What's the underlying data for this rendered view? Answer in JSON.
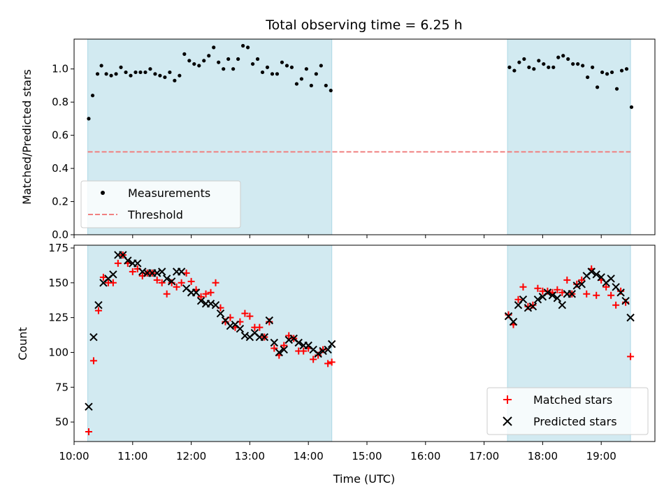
{
  "chart_data": [
    {
      "type": "scatter",
      "title": "Total observing time = 6.25 h",
      "xlabel": "",
      "ylabel": "Matched/Predicted stars",
      "xlim": [
        "10:00",
        "19:55"
      ],
      "ylim": [
        0,
        1.18
      ],
      "yticks": [
        "0.0",
        "0.2",
        "0.4",
        "0.6",
        "0.8",
        "1.0"
      ],
      "shaded_intervals": [
        [
          "10:14",
          "14:24"
        ],
        [
          "17:24",
          "19:30"
        ]
      ],
      "shade_color": "#add8e6",
      "grid": false,
      "legend": "lower-left",
      "series": [
        {
          "name": "Measurements",
          "marker": "dot",
          "color": "#000000",
          "points": [
            [
              "10:15",
              0.7
            ],
            [
              "10:19",
              0.84
            ],
            [
              "10:24",
              0.97
            ],
            [
              "10:28",
              1.02
            ],
            [
              "10:33",
              0.97
            ],
            [
              "10:38",
              0.96
            ],
            [
              "10:43",
              0.97
            ],
            [
              "10:48",
              1.01
            ],
            [
              "10:53",
              0.98
            ],
            [
              "10:58",
              0.96
            ],
            [
              "11:03",
              0.98
            ],
            [
              "11:08",
              0.98
            ],
            [
              "11:13",
              0.98
            ],
            [
              "11:18",
              1.0
            ],
            [
              "11:23",
              0.97
            ],
            [
              "11:28",
              0.96
            ],
            [
              "11:33",
              0.95
            ],
            [
              "11:38",
              0.98
            ],
            [
              "11:43",
              0.93
            ],
            [
              "11:48",
              0.96
            ],
            [
              "11:53",
              1.09
            ],
            [
              "11:58",
              1.05
            ],
            [
              "12:03",
              1.03
            ],
            [
              "12:08",
              1.02
            ],
            [
              "12:13",
              1.05
            ],
            [
              "12:18",
              1.08
            ],
            [
              "12:23",
              1.13
            ],
            [
              "12:28",
              1.04
            ],
            [
              "12:33",
              1.0
            ],
            [
              "12:38",
              1.06
            ],
            [
              "12:43",
              1.0
            ],
            [
              "12:48",
              1.06
            ],
            [
              "12:53",
              1.14
            ],
            [
              "12:58",
              1.13
            ],
            [
              "13:03",
              1.03
            ],
            [
              "13:08",
              1.06
            ],
            [
              "13:13",
              0.98
            ],
            [
              "13:18",
              1.01
            ],
            [
              "13:23",
              0.97
            ],
            [
              "13:28",
              0.97
            ],
            [
              "13:33",
              1.04
            ],
            [
              "13:38",
              1.02
            ],
            [
              "13:43",
              1.01
            ],
            [
              "13:48",
              0.91
            ],
            [
              "13:53",
              0.94
            ],
            [
              "13:58",
              1.0
            ],
            [
              "14:03",
              0.9
            ],
            [
              "14:08",
              0.97
            ],
            [
              "14:13",
              1.02
            ],
            [
              "14:18",
              0.9
            ],
            [
              "14:23",
              0.87
            ],
            [
              "17:26",
              1.01
            ],
            [
              "17:31",
              0.99
            ],
            [
              "17:36",
              1.04
            ],
            [
              "17:41",
              1.06
            ],
            [
              "17:46",
              1.01
            ],
            [
              "17:51",
              1.0
            ],
            [
              "17:56",
              1.05
            ],
            [
              "18:01",
              1.03
            ],
            [
              "18:06",
              1.01
            ],
            [
              "18:11",
              1.01
            ],
            [
              "18:16",
              1.07
            ],
            [
              "18:21",
              1.08
            ],
            [
              "18:26",
              1.06
            ],
            [
              "18:31",
              1.03
            ],
            [
              "18:36",
              1.03
            ],
            [
              "18:41",
              1.02
            ],
            [
              "18:46",
              0.95
            ],
            [
              "18:51",
              1.01
            ],
            [
              "18:56",
              0.89
            ],
            [
              "19:01",
              0.98
            ],
            [
              "19:06",
              0.97
            ],
            [
              "19:11",
              0.98
            ],
            [
              "19:16",
              0.88
            ],
            [
              "19:21",
              0.99
            ],
            [
              "19:26",
              1.0
            ],
            [
              "19:31",
              0.77
            ]
          ]
        },
        {
          "name": "Threshold",
          "marker": "dashed-line",
          "color": "#f08080",
          "value": 0.5
        }
      ]
    },
    {
      "type": "scatter",
      "title": "",
      "xlabel": "Time (UTC)",
      "ylabel": "Count",
      "xlim": [
        "10:00",
        "19:55"
      ],
      "ylim": [
        36,
        177
      ],
      "yticks": [
        "50",
        "75",
        "100",
        "125",
        "150",
        "175"
      ],
      "xticks": [
        "10:00",
        "11:00",
        "12:00",
        "13:00",
        "14:00",
        "15:00",
        "16:00",
        "17:00",
        "18:00",
        "19:00"
      ],
      "shaded_intervals": [
        [
          "10:14",
          "14:24"
        ],
        [
          "17:24",
          "19:30"
        ]
      ],
      "shade_color": "#add8e6",
      "grid": false,
      "legend": "lower-right",
      "series": [
        {
          "name": "Matched stars",
          "marker": "plus",
          "color": "#ff0000",
          "points": [
            [
              "10:15",
              43
            ],
            [
              "10:20",
              94
            ],
            [
              "10:25",
              130
            ],
            [
              "10:30",
              154
            ],
            [
              "10:35",
              150
            ],
            [
              "10:40",
              150
            ],
            [
              "10:45",
              164
            ],
            [
              "10:50",
              170
            ],
            [
              "10:55",
              164
            ],
            [
              "11:00",
              158
            ],
            [
              "11:05",
              160
            ],
            [
              "11:10",
              155
            ],
            [
              "11:15",
              157
            ],
            [
              "11:20",
              157
            ],
            [
              "11:25",
              152
            ],
            [
              "11:30",
              150
            ],
            [
              "11:35",
              142
            ],
            [
              "11:40",
              150
            ],
            [
              "11:45",
              147
            ],
            [
              "11:50",
              150
            ],
            [
              "11:55",
              157
            ],
            [
              "12:00",
              151
            ],
            [
              "12:05",
              145
            ],
            [
              "12:10",
              140
            ],
            [
              "12:15",
              142
            ],
            [
              "12:20",
              143
            ],
            [
              "12:25",
              150
            ],
            [
              "12:30",
              132
            ],
            [
              "12:35",
              122
            ],
            [
              "12:40",
              125
            ],
            [
              "12:45",
              118
            ],
            [
              "12:50",
              122
            ],
            [
              "12:55",
              128
            ],
            [
              "13:00",
              126
            ],
            [
              "13:05",
              118
            ],
            [
              "13:10",
              118
            ],
            [
              "13:15",
              111
            ],
            [
              "13:20",
              122
            ],
            [
              "13:25",
              103
            ],
            [
              "13:30",
              98
            ],
            [
              "13:35",
              105
            ],
            [
              "13:40",
              112
            ],
            [
              "13:45",
              110
            ],
            [
              "13:50",
              101
            ],
            [
              "13:55",
              101
            ],
            [
              "14:00",
              103
            ],
            [
              "14:05",
              95
            ],
            [
              "14:10",
              98
            ],
            [
              "14:15",
              102
            ],
            [
              "14:20",
              92
            ],
            [
              "14:24",
              93
            ],
            [
              "17:25",
              127
            ],
            [
              "17:30",
              120
            ],
            [
              "17:35",
              138
            ],
            [
              "17:40",
              147
            ],
            [
              "17:45",
              133
            ],
            [
              "17:50",
              134
            ],
            [
              "17:55",
              146
            ],
            [
              "18:00",
              144
            ],
            [
              "18:05",
              144
            ],
            [
              "18:10",
              143
            ],
            [
              "18:15",
              145
            ],
            [
              "18:20",
              143
            ],
            [
              "18:25",
              152
            ],
            [
              "18:30",
              142
            ],
            [
              "18:35",
              149
            ],
            [
              "18:40",
              152
            ],
            [
              "18:45",
              142
            ],
            [
              "18:50",
              160
            ],
            [
              "18:55",
              141
            ],
            [
              "19:00",
              152
            ],
            [
              "19:05",
              147
            ],
            [
              "19:10",
              141
            ],
            [
              "19:15",
              134
            ],
            [
              "19:20",
              144
            ],
            [
              "19:25",
              136
            ],
            [
              "19:30",
              97
            ]
          ]
        },
        {
          "name": "Predicted stars",
          "marker": "x",
          "color": "#000000",
          "points": [
            [
              "10:15",
              61
            ],
            [
              "10:20",
              111
            ],
            [
              "10:25",
              134
            ],
            [
              "10:30",
              150
            ],
            [
              "10:35",
              153
            ],
            [
              "10:40",
              156
            ],
            [
              "10:45",
              170
            ],
            [
              "10:50",
              170
            ],
            [
              "10:55",
              166
            ],
            [
              "11:00",
              164
            ],
            [
              "11:05",
              164
            ],
            [
              "11:10",
              158
            ],
            [
              "11:15",
              157
            ],
            [
              "11:20",
              157
            ],
            [
              "11:25",
              157
            ],
            [
              "11:30",
              158
            ],
            [
              "11:35",
              153
            ],
            [
              "11:40",
              151
            ],
            [
              "11:45",
              158
            ],
            [
              "11:50",
              158
            ],
            [
              "11:55",
              146
            ],
            [
              "12:00",
              143
            ],
            [
              "12:05",
              143
            ],
            [
              "12:10",
              137
            ],
            [
              "12:15",
              135
            ],
            [
              "12:20",
              135
            ],
            [
              "12:25",
              134
            ],
            [
              "12:30",
              128
            ],
            [
              "12:35",
              123
            ],
            [
              "12:40",
              119
            ],
            [
              "12:45",
              120
            ],
            [
              "12:50",
              117
            ],
            [
              "12:55",
              112
            ],
            [
              "13:00",
              111
            ],
            [
              "13:05",
              114
            ],
            [
              "13:10",
              111
            ],
            [
              "13:15",
              111
            ],
            [
              "13:20",
              123
            ],
            [
              "13:25",
              107
            ],
            [
              "13:30",
              100
            ],
            [
              "13:35",
              102
            ],
            [
              "13:40",
              109
            ],
            [
              "13:45",
              110
            ],
            [
              "13:50",
              107
            ],
            [
              "13:55",
              105
            ],
            [
              "14:00",
              105
            ],
            [
              "14:05",
              102
            ],
            [
              "14:10",
              99
            ],
            [
              "14:15",
              101
            ],
            [
              "14:20",
              102
            ],
            [
              "14:24",
              106
            ],
            [
              "17:25",
              126
            ],
            [
              "17:30",
              122
            ],
            [
              "17:35",
              134
            ],
            [
              "17:40",
              138
            ],
            [
              "17:45",
              132
            ],
            [
              "17:50",
              133
            ],
            [
              "17:55",
              138
            ],
            [
              "18:00",
              140
            ],
            [
              "18:05",
              143
            ],
            [
              "18:10",
              141
            ],
            [
              "18:15",
              139
            ],
            [
              "18:20",
              134
            ],
            [
              "18:25",
              142
            ],
            [
              "18:30",
              142
            ],
            [
              "18:35",
              148
            ],
            [
              "18:40",
              149
            ],
            [
              "18:45",
              155
            ],
            [
              "18:50",
              158
            ],
            [
              "18:55",
              156
            ],
            [
              "19:00",
              154
            ],
            [
              "19:05",
              150
            ],
            [
              "19:10",
              153
            ],
            [
              "19:15",
              147
            ],
            [
              "19:20",
              143
            ],
            [
              "19:25",
              137
            ],
            [
              "19:30",
              125
            ]
          ]
        }
      ]
    }
  ]
}
